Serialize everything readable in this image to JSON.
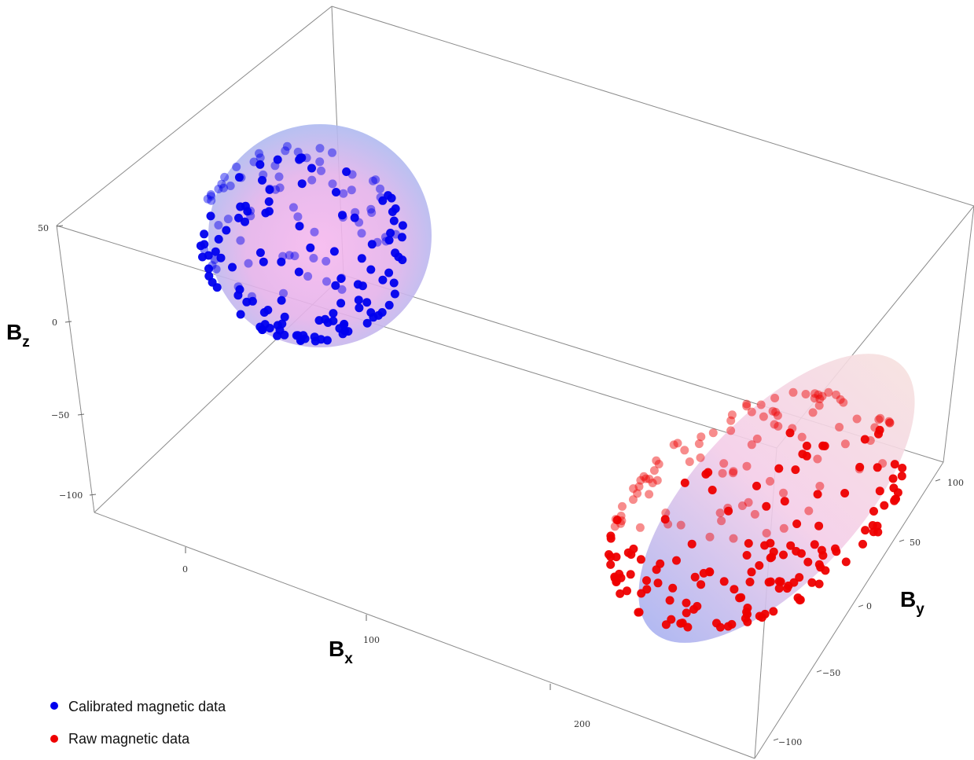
{
  "chart_data": {
    "type": "scatter",
    "dimensions": 3,
    "axis_labels": {
      "x": {
        "main": "B",
        "sub": "x"
      },
      "y": {
        "main": "B",
        "sub": "y"
      },
      "z": {
        "main": "B",
        "sub": "z"
      }
    },
    "ticks": {
      "x": [
        "0",
        "100",
        "200"
      ],
      "y": [
        "−100",
        "−50",
        "0",
        "50",
        "100"
      ],
      "z": [
        "−100",
        "−50",
        "0",
        "50"
      ]
    },
    "ranges": {
      "x": [
        -60,
        300
      ],
      "y": [
        -110,
        110
      ],
      "z": [
        -120,
        60
      ]
    },
    "series": [
      {
        "name": "Calibrated magnetic data",
        "color": "#0000ee",
        "surface": "sphere",
        "center": [
          0,
          0,
          0
        ],
        "radii": [
          48,
          48,
          48
        ],
        "n_points": 190,
        "seed": 11
      },
      {
        "name": "Raw magnetic data",
        "color": "#ee0000",
        "surface": "ellipsoid",
        "center": [
          235,
          5,
          -70
        ],
        "radii": [
          55,
          95,
          30
        ],
        "n_points": 240,
        "seed": 29
      }
    ],
    "surface_colors": [
      "#f2c6ee",
      "#b9bbf0",
      "#f5d2dc"
    ],
    "legend_position": "bottom-left",
    "grid": false
  }
}
